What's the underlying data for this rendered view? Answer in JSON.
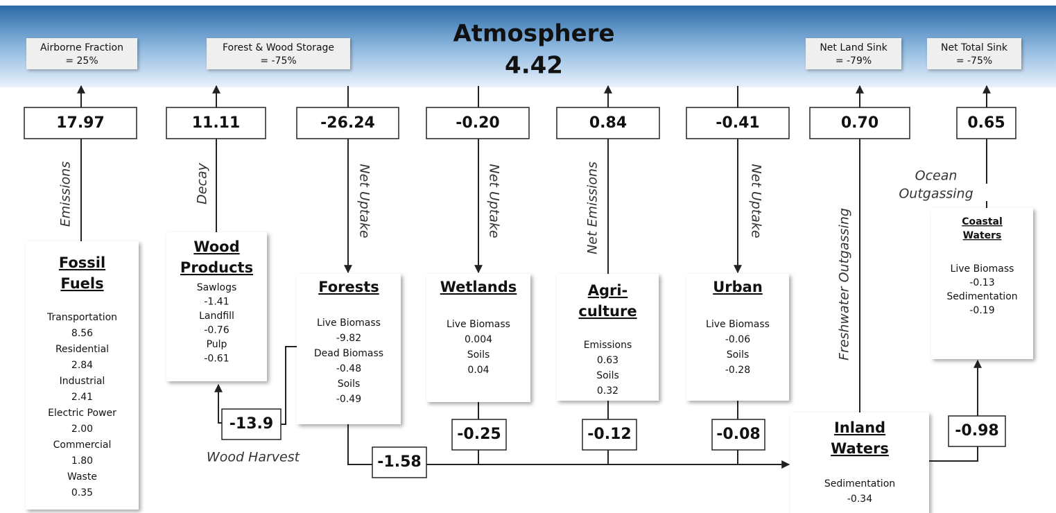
{
  "atmosphere": {
    "title": "Atmosphere",
    "value": "4.42"
  },
  "fractions": [
    {
      "label": "Airborne Fraction",
      "value": "= 25%"
    },
    {
      "label": "Forest & Wood Storage",
      "value": "= -75%"
    },
    {
      "label": "Net Land Sink",
      "value": "= -79%"
    },
    {
      "label": "Net Total Sink",
      "value": "= -75%"
    }
  ],
  "fluxes": [
    {
      "value": "17.97",
      "label": "Emissions"
    },
    {
      "value": "11.11",
      "label": "Decay"
    },
    {
      "value": "-26.24",
      "label": "Net Uptake"
    },
    {
      "value": "-0.20",
      "label": "Net Uptake"
    },
    {
      "value": "0.84",
      "label": "Net Emissions"
    },
    {
      "value": "-0.41",
      "label": "Net Uptake"
    },
    {
      "value": "0.70",
      "label": "Freshwater Outgassing"
    },
    {
      "value": "0.65",
      "label": [
        "Ocean",
        "Outgassing"
      ]
    }
  ],
  "pools": [
    {
      "title": [
        "Fossil",
        "Fuels"
      ],
      "items": [
        [
          "Transportation",
          "8.56"
        ],
        [
          "Residential",
          "2.84"
        ],
        [
          "Industrial",
          "2.41"
        ],
        [
          "Electric Power",
          "2.00"
        ],
        [
          "Commercial",
          "1.80"
        ],
        [
          "Waste",
          "0.35"
        ]
      ]
    },
    {
      "title": [
        "Wood",
        "Products"
      ],
      "items": [
        [
          "Sawlogs",
          "-1.41"
        ],
        [
          "Landfill",
          "-0.76"
        ],
        [
          "Pulp",
          "-0.61"
        ]
      ]
    },
    {
      "title": [
        "Forests"
      ],
      "items": [
        [
          "Live Biomass",
          "-9.82"
        ],
        [
          "Dead Biomass",
          "-0.48"
        ],
        [
          "Soils",
          "-0.49"
        ]
      ]
    },
    {
      "title": [
        "Wetlands"
      ],
      "items": [
        [
          "Live Biomass",
          "0.004"
        ],
        [
          "Soils",
          "0.04"
        ]
      ]
    },
    {
      "title": [
        "Agri-",
        "culture"
      ],
      "items": [
        [
          "Emissions",
          "0.63"
        ],
        [
          "Soils",
          "0.32"
        ]
      ]
    },
    {
      "title": [
        "Urban"
      ],
      "items": [
        [
          "Live Biomass",
          "-0.06"
        ],
        [
          "Soils",
          "-0.28"
        ]
      ]
    },
    {
      "title": [
        "Inland",
        "Waters"
      ],
      "items": [
        [
          "Sedimentation",
          "-0.34"
        ]
      ]
    },
    {
      "title": [
        "Coastal",
        "Waters"
      ],
      "items": [
        [
          "Live Biomass",
          "-0.13"
        ],
        [
          "Sedimentation",
          "-0.19"
        ]
      ]
    }
  ],
  "transfers": [
    {
      "value": "-13.9",
      "label": "Wood Harvest"
    },
    {
      "value": "-1.58"
    },
    {
      "value": "-0.25"
    },
    {
      "value": "-0.12"
    },
    {
      "value": "-0.08"
    },
    {
      "value": "-0.98"
    }
  ]
}
